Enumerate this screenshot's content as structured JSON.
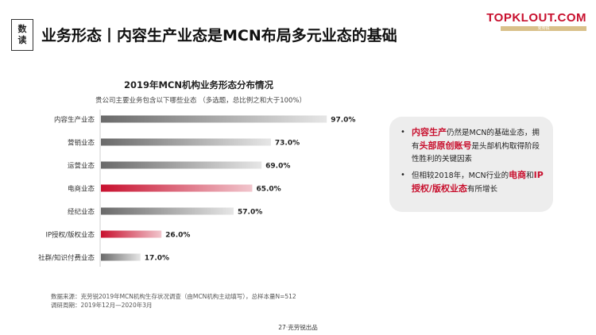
{
  "header": {
    "badge_line1": "数",
    "badge_line2": "读",
    "title": "业务形态丨内容生产业态是MCN布局多元业态的基础",
    "logo": "TOPKLOUT.COM",
    "logo_sub": "克劳锐"
  },
  "chart_data": {
    "type": "bar",
    "orientation": "horizontal",
    "title": "2019年MCN机构业务形态分布情况",
    "subtitle": "贵公司主要业务包含以下哪些业态 （多选题，总比例之和大于100%）",
    "categories": [
      "内容生产业态",
      "营销业态",
      "运营业态",
      "电商业态",
      "经纪业态",
      "IP授权/版权业态",
      "社群/知识付费业态"
    ],
    "values": [
      97.0,
      73.0,
      69.0,
      65.0,
      57.0,
      26.0,
      17.0
    ],
    "value_labels": [
      "97.0%",
      "73.0%",
      "69.0%",
      "65.0%",
      "57.0%",
      "26.0%",
      "17.0%"
    ],
    "highlighted": [
      false,
      false,
      false,
      true,
      false,
      true,
      false
    ],
    "colors": {
      "default": "#8c8c8c",
      "highlight": "#c8102e",
      "light": "#e6e6e6"
    },
    "xlim": [
      0,
      100
    ],
    "grid": false,
    "legend": "none"
  },
  "callout": {
    "b1_hl1": "内容生产",
    "b1_t1": "仍然是MCN的基础业态，拥有",
    "b1_hl2": "头部原创账号",
    "b1_t2": "是头部机构取得阶段性胜利的关键因素",
    "b2_t1": "但相较2018年，MCN行业的",
    "b2_hl1": "电商",
    "b2_t2": "和",
    "b2_hl2": "IP授权/版权业态",
    "b2_t3": "有所增长"
  },
  "source": {
    "line1": "数据来源：克劳锐2019年MCN机构生存状况调查（由MCN机构主动填写），总样本量N=512",
    "line2": "调研周期：2019年12月—2020年3月"
  },
  "footer": {
    "text": "27·克劳锐出品"
  }
}
